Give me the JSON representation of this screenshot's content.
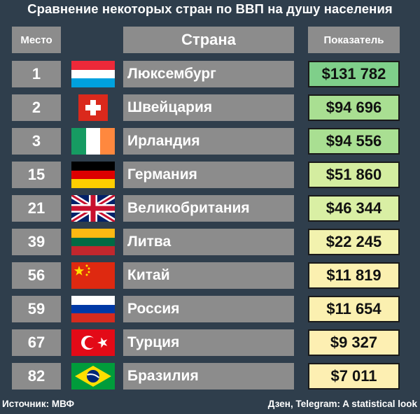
{
  "title": "Сравнение некоторых стран по ВВП на душу населения",
  "headers": {
    "rank": "Место",
    "country": "Страна",
    "value": "Показатель"
  },
  "chart_data": {
    "type": "table",
    "title": "Сравнение некоторых стран по ВВП на душу населения",
    "columns": [
      "Место",
      "Страна",
      "Показатель"
    ],
    "rows": [
      {
        "rank": "1",
        "country": "Люксембург",
        "value": "$131 782",
        "value_num": 131782,
        "flag": "luxembourg-flag",
        "color": "#7fcf8a"
      },
      {
        "rank": "2",
        "country": "Швейцария",
        "value": "$94 696",
        "value_num": 94696,
        "flag": "switzerland-flag",
        "color": "#a9df92"
      },
      {
        "rank": "3",
        "country": "Ирландия",
        "value": "$94 556",
        "value_num": 94556,
        "flag": "ireland-flag",
        "color": "#a9df92"
      },
      {
        "rank": "15",
        "country": "Германия",
        "value": "$51 860",
        "value_num": 51860,
        "flag": "germany-flag",
        "color": "#d4eda0"
      },
      {
        "rank": "21",
        "country": "Великобритания",
        "value": "$46 344",
        "value_num": 46344,
        "flag": "uk-flag",
        "color": "#d9efa4"
      },
      {
        "rank": "39",
        "country": "Литва",
        "value": "$22 245",
        "value_num": 22245,
        "flag": "lithuania-flag",
        "color": "#f2f2ae"
      },
      {
        "rank": "56",
        "country": "Китай",
        "value": "$11 819",
        "value_num": 11819,
        "flag": "china-flag",
        "color": "#fbf0b0"
      },
      {
        "rank": "59",
        "country": "Россия",
        "value": "$11 654",
        "value_num": 11654,
        "flag": "russia-flag",
        "color": "#fbf0b0"
      },
      {
        "rank": "67",
        "country": "Турция",
        "value": "$9 327",
        "value_num": 9327,
        "flag": "turkey-flag",
        "color": "#fdefb2"
      },
      {
        "rank": "82",
        "country": "Бразилия",
        "value": "$7 011",
        "value_num": 7011,
        "flag": "brazil-flag",
        "color": "#fdefb2"
      }
    ]
  },
  "footer": {
    "source": "Источник: МВФ",
    "credit": "Дзен, Telegram: A statistical look"
  }
}
